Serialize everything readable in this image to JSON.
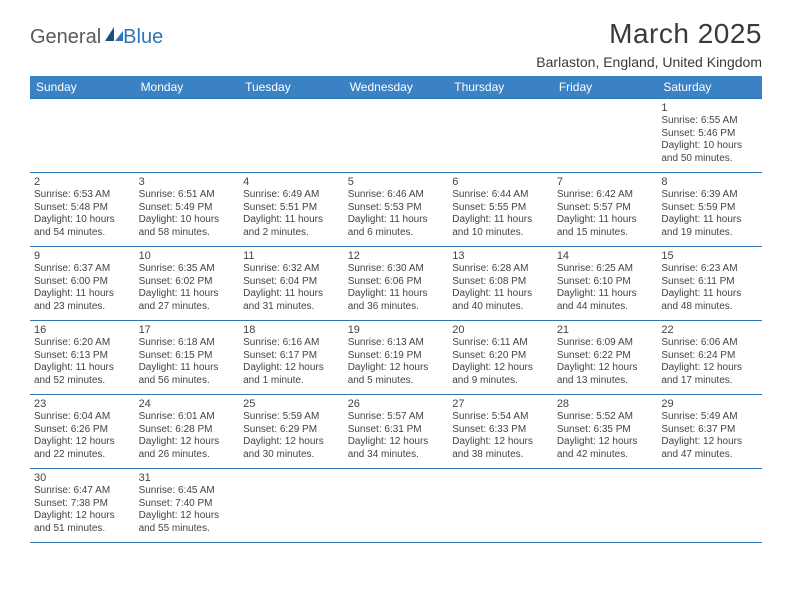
{
  "brand": {
    "part1": "General",
    "part2": "Blue"
  },
  "title": "March 2025",
  "location": "Barlaston, England, United Kingdom",
  "colors": {
    "header_bg": "#3b82c4",
    "header_text": "#ffffff",
    "border": "#2e75b6",
    "text": "#444444",
    "brand_gray": "#5a5a5a",
    "brand_blue": "#2e75b6"
  },
  "weekdays": [
    "Sunday",
    "Monday",
    "Tuesday",
    "Wednesday",
    "Thursday",
    "Friday",
    "Saturday"
  ],
  "weeks": [
    [
      null,
      null,
      null,
      null,
      null,
      null,
      {
        "d": "1",
        "sr": "Sunrise: 6:55 AM",
        "ss": "Sunset: 5:46 PM",
        "dl1": "Daylight: 10 hours",
        "dl2": "and 50 minutes."
      }
    ],
    [
      {
        "d": "2",
        "sr": "Sunrise: 6:53 AM",
        "ss": "Sunset: 5:48 PM",
        "dl1": "Daylight: 10 hours",
        "dl2": "and 54 minutes."
      },
      {
        "d": "3",
        "sr": "Sunrise: 6:51 AM",
        "ss": "Sunset: 5:49 PM",
        "dl1": "Daylight: 10 hours",
        "dl2": "and 58 minutes."
      },
      {
        "d": "4",
        "sr": "Sunrise: 6:49 AM",
        "ss": "Sunset: 5:51 PM",
        "dl1": "Daylight: 11 hours",
        "dl2": "and 2 minutes."
      },
      {
        "d": "5",
        "sr": "Sunrise: 6:46 AM",
        "ss": "Sunset: 5:53 PM",
        "dl1": "Daylight: 11 hours",
        "dl2": "and 6 minutes."
      },
      {
        "d": "6",
        "sr": "Sunrise: 6:44 AM",
        "ss": "Sunset: 5:55 PM",
        "dl1": "Daylight: 11 hours",
        "dl2": "and 10 minutes."
      },
      {
        "d": "7",
        "sr": "Sunrise: 6:42 AM",
        "ss": "Sunset: 5:57 PM",
        "dl1": "Daylight: 11 hours",
        "dl2": "and 15 minutes."
      },
      {
        "d": "8",
        "sr": "Sunrise: 6:39 AM",
        "ss": "Sunset: 5:59 PM",
        "dl1": "Daylight: 11 hours",
        "dl2": "and 19 minutes."
      }
    ],
    [
      {
        "d": "9",
        "sr": "Sunrise: 6:37 AM",
        "ss": "Sunset: 6:00 PM",
        "dl1": "Daylight: 11 hours",
        "dl2": "and 23 minutes."
      },
      {
        "d": "10",
        "sr": "Sunrise: 6:35 AM",
        "ss": "Sunset: 6:02 PM",
        "dl1": "Daylight: 11 hours",
        "dl2": "and 27 minutes."
      },
      {
        "d": "11",
        "sr": "Sunrise: 6:32 AM",
        "ss": "Sunset: 6:04 PM",
        "dl1": "Daylight: 11 hours",
        "dl2": "and 31 minutes."
      },
      {
        "d": "12",
        "sr": "Sunrise: 6:30 AM",
        "ss": "Sunset: 6:06 PM",
        "dl1": "Daylight: 11 hours",
        "dl2": "and 36 minutes."
      },
      {
        "d": "13",
        "sr": "Sunrise: 6:28 AM",
        "ss": "Sunset: 6:08 PM",
        "dl1": "Daylight: 11 hours",
        "dl2": "and 40 minutes."
      },
      {
        "d": "14",
        "sr": "Sunrise: 6:25 AM",
        "ss": "Sunset: 6:10 PM",
        "dl1": "Daylight: 11 hours",
        "dl2": "and 44 minutes."
      },
      {
        "d": "15",
        "sr": "Sunrise: 6:23 AM",
        "ss": "Sunset: 6:11 PM",
        "dl1": "Daylight: 11 hours",
        "dl2": "and 48 minutes."
      }
    ],
    [
      {
        "d": "16",
        "sr": "Sunrise: 6:20 AM",
        "ss": "Sunset: 6:13 PM",
        "dl1": "Daylight: 11 hours",
        "dl2": "and 52 minutes."
      },
      {
        "d": "17",
        "sr": "Sunrise: 6:18 AM",
        "ss": "Sunset: 6:15 PM",
        "dl1": "Daylight: 11 hours",
        "dl2": "and 56 minutes."
      },
      {
        "d": "18",
        "sr": "Sunrise: 6:16 AM",
        "ss": "Sunset: 6:17 PM",
        "dl1": "Daylight: 12 hours",
        "dl2": "and 1 minute."
      },
      {
        "d": "19",
        "sr": "Sunrise: 6:13 AM",
        "ss": "Sunset: 6:19 PM",
        "dl1": "Daylight: 12 hours",
        "dl2": "and 5 minutes."
      },
      {
        "d": "20",
        "sr": "Sunrise: 6:11 AM",
        "ss": "Sunset: 6:20 PM",
        "dl1": "Daylight: 12 hours",
        "dl2": "and 9 minutes."
      },
      {
        "d": "21",
        "sr": "Sunrise: 6:09 AM",
        "ss": "Sunset: 6:22 PM",
        "dl1": "Daylight: 12 hours",
        "dl2": "and 13 minutes."
      },
      {
        "d": "22",
        "sr": "Sunrise: 6:06 AM",
        "ss": "Sunset: 6:24 PM",
        "dl1": "Daylight: 12 hours",
        "dl2": "and 17 minutes."
      }
    ],
    [
      {
        "d": "23",
        "sr": "Sunrise: 6:04 AM",
        "ss": "Sunset: 6:26 PM",
        "dl1": "Daylight: 12 hours",
        "dl2": "and 22 minutes."
      },
      {
        "d": "24",
        "sr": "Sunrise: 6:01 AM",
        "ss": "Sunset: 6:28 PM",
        "dl1": "Daylight: 12 hours",
        "dl2": "and 26 minutes."
      },
      {
        "d": "25",
        "sr": "Sunrise: 5:59 AM",
        "ss": "Sunset: 6:29 PM",
        "dl1": "Daylight: 12 hours",
        "dl2": "and 30 minutes."
      },
      {
        "d": "26",
        "sr": "Sunrise: 5:57 AM",
        "ss": "Sunset: 6:31 PM",
        "dl1": "Daylight: 12 hours",
        "dl2": "and 34 minutes."
      },
      {
        "d": "27",
        "sr": "Sunrise: 5:54 AM",
        "ss": "Sunset: 6:33 PM",
        "dl1": "Daylight: 12 hours",
        "dl2": "and 38 minutes."
      },
      {
        "d": "28",
        "sr": "Sunrise: 5:52 AM",
        "ss": "Sunset: 6:35 PM",
        "dl1": "Daylight: 12 hours",
        "dl2": "and 42 minutes."
      },
      {
        "d": "29",
        "sr": "Sunrise: 5:49 AM",
        "ss": "Sunset: 6:37 PM",
        "dl1": "Daylight: 12 hours",
        "dl2": "and 47 minutes."
      }
    ],
    [
      {
        "d": "30",
        "sr": "Sunrise: 6:47 AM",
        "ss": "Sunset: 7:38 PM",
        "dl1": "Daylight: 12 hours",
        "dl2": "and 51 minutes."
      },
      {
        "d": "31",
        "sr": "Sunrise: 6:45 AM",
        "ss": "Sunset: 7:40 PM",
        "dl1": "Daylight: 12 hours",
        "dl2": "and 55 minutes."
      },
      null,
      null,
      null,
      null,
      null
    ]
  ]
}
